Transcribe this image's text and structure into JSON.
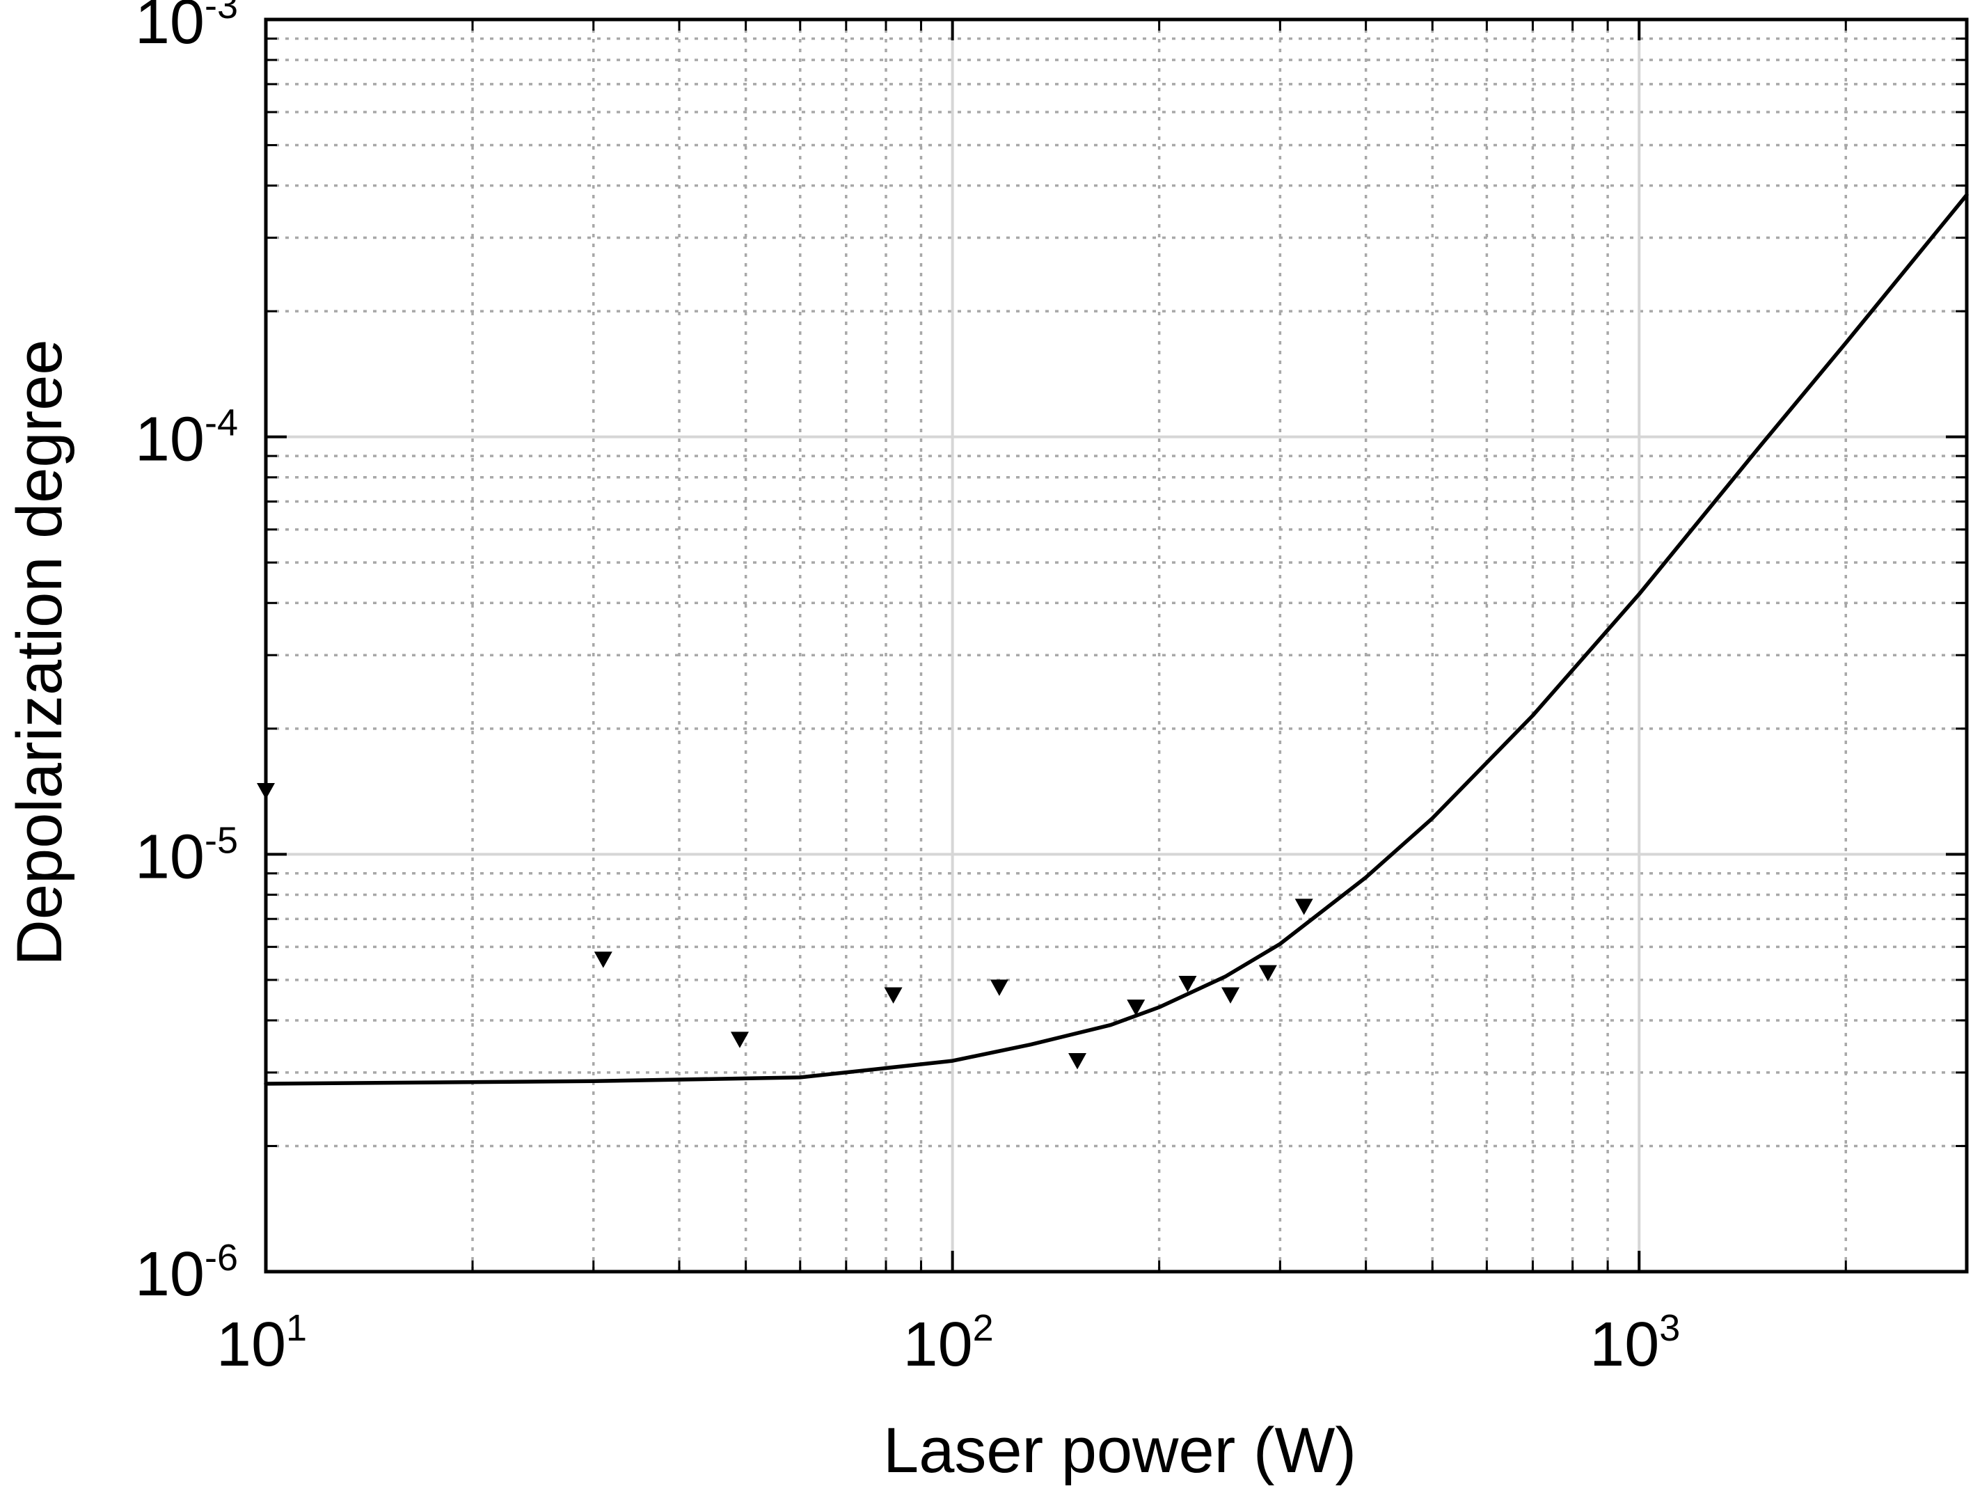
{
  "chart_data": {
    "type": "scatter",
    "xscale": "log",
    "yscale": "log",
    "xlim": [
      10,
      3000
    ],
    "ylim": [
      1e-06,
      0.001
    ],
    "xlabel": "Laser power (W)",
    "ylabel": "Depolarization degree",
    "grid": true,
    "x_ticks": [
      {
        "base": "10",
        "exp": "1",
        "value": 10
      },
      {
        "base": "10",
        "exp": "2",
        "value": 100
      },
      {
        "base": "10",
        "exp": "3",
        "value": 1000
      }
    ],
    "y_ticks": [
      {
        "base": "10",
        "exp": "-6",
        "value": 1e-06
      },
      {
        "base": "10",
        "exp": "-5",
        "value": 1e-05
      },
      {
        "base": "10",
        "exp": "-4",
        "value": 0.0001
      },
      {
        "base": "10",
        "exp": "-3",
        "value": 0.001
      }
    ],
    "series": [
      {
        "kind": "markers",
        "marker": "down-triangle",
        "color": "#000000",
        "points": [
          {
            "x": 10,
            "y": 1.42e-05
          },
          {
            "x": 31,
            "y": 5.6e-06
          },
          {
            "x": 49,
            "y": 3.6e-06
          },
          {
            "x": 82,
            "y": 4.6e-06
          },
          {
            "x": 117,
            "y": 4.8e-06
          },
          {
            "x": 152,
            "y": 3.2e-06
          },
          {
            "x": 185,
            "y": 4.3e-06
          },
          {
            "x": 220,
            "y": 4.9e-06
          },
          {
            "x": 254,
            "y": 4.6e-06
          },
          {
            "x": 288,
            "y": 5.2e-06
          },
          {
            "x": 325,
            "y": 7.5e-06
          }
        ]
      },
      {
        "kind": "fit-line",
        "color": "#000000",
        "points": [
          {
            "x": 10,
            "y": 2.82e-06
          },
          {
            "x": 30,
            "y": 2.86e-06
          },
          {
            "x": 60,
            "y": 2.92e-06
          },
          {
            "x": 100,
            "y": 3.2e-06
          },
          {
            "x": 130,
            "y": 3.5e-06
          },
          {
            "x": 170,
            "y": 3.9e-06
          },
          {
            "x": 200,
            "y": 4.3e-06
          },
          {
            "x": 250,
            "y": 5.1e-06
          },
          {
            "x": 300,
            "y": 6.1e-06
          },
          {
            "x": 400,
            "y": 8.8e-06
          },
          {
            "x": 500,
            "y": 1.22e-05
          },
          {
            "x": 700,
            "y": 2.15e-05
          },
          {
            "x": 1000,
            "y": 4.2e-05
          },
          {
            "x": 1500,
            "y": 9.5e-05
          },
          {
            "x": 2000,
            "y": 0.000168
          },
          {
            "x": 3000,
            "y": 0.00038
          }
        ]
      }
    ]
  }
}
